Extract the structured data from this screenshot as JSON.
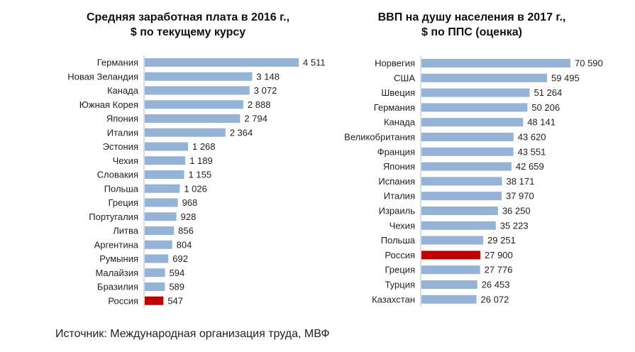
{
  "source": "Источник: Международная организация труда, МВФ",
  "chart_data": [
    {
      "type": "bar",
      "orientation": "horizontal",
      "title": "Средняя заработная плата в 2016 г.,",
      "subtitle": "$ по текущему курсу",
      "categories": [
        "Германия",
        "Новая Зеландия",
        "Канада",
        "Южная Корея",
        "Япония",
        "Италия",
        "Эстония",
        "Чехия",
        "Словакия",
        "Польша",
        "Греция",
        "Португалия",
        "Литва",
        "Аргентина",
        "Румыния",
        "Малайзия",
        "Бразилия",
        "Россия"
      ],
      "values": [
        4511,
        3148,
        3072,
        2888,
        2794,
        2364,
        1268,
        1189,
        1155,
        1026,
        968,
        928,
        856,
        804,
        692,
        594,
        589,
        547
      ],
      "value_labels": [
        "4 511",
        "3 148",
        "3 072",
        "2 888",
        "2 794",
        "2 364",
        "1 268",
        "1 189",
        "1 155",
        "1 026",
        "968",
        "928",
        "856",
        "804",
        "692",
        "594",
        "589",
        "547"
      ],
      "highlight": "Россия",
      "bar_color": "#95b3d7",
      "highlight_color": "#c00000",
      "xlim": [
        0,
        4511
      ]
    },
    {
      "type": "bar",
      "orientation": "horizontal",
      "title": "ВВП на душу населения в 2017 г.,",
      "subtitle": "$ по ППС (оценка)",
      "categories": [
        "Норвегия",
        "США",
        "Швеция",
        "Германия",
        "Канада",
        "Великобритания",
        "Франция",
        "Япония",
        "Испания",
        "Италия",
        "Израиль",
        "Чехия",
        "Польша",
        "Россия",
        "Греция",
        "Турция",
        "Казахстан"
      ],
      "values": [
        70590,
        59495,
        51264,
        50206,
        48141,
        43620,
        43551,
        42659,
        38171,
        37970,
        36250,
        35223,
        29251,
        27900,
        27776,
        26453,
        26072
      ],
      "value_labels": [
        "70 590",
        "59 495",
        "51 264",
        "50 206",
        "48 141",
        "43 620",
        "43 551",
        "42 659",
        "38 171",
        "37 970",
        "36 250",
        "35 223",
        "29 251",
        "27 900",
        "27 776",
        "26 453",
        "26 072"
      ],
      "highlight": "Россия",
      "bar_color": "#95b3d7",
      "highlight_color": "#c00000",
      "xlim": [
        0,
        70590
      ]
    }
  ]
}
